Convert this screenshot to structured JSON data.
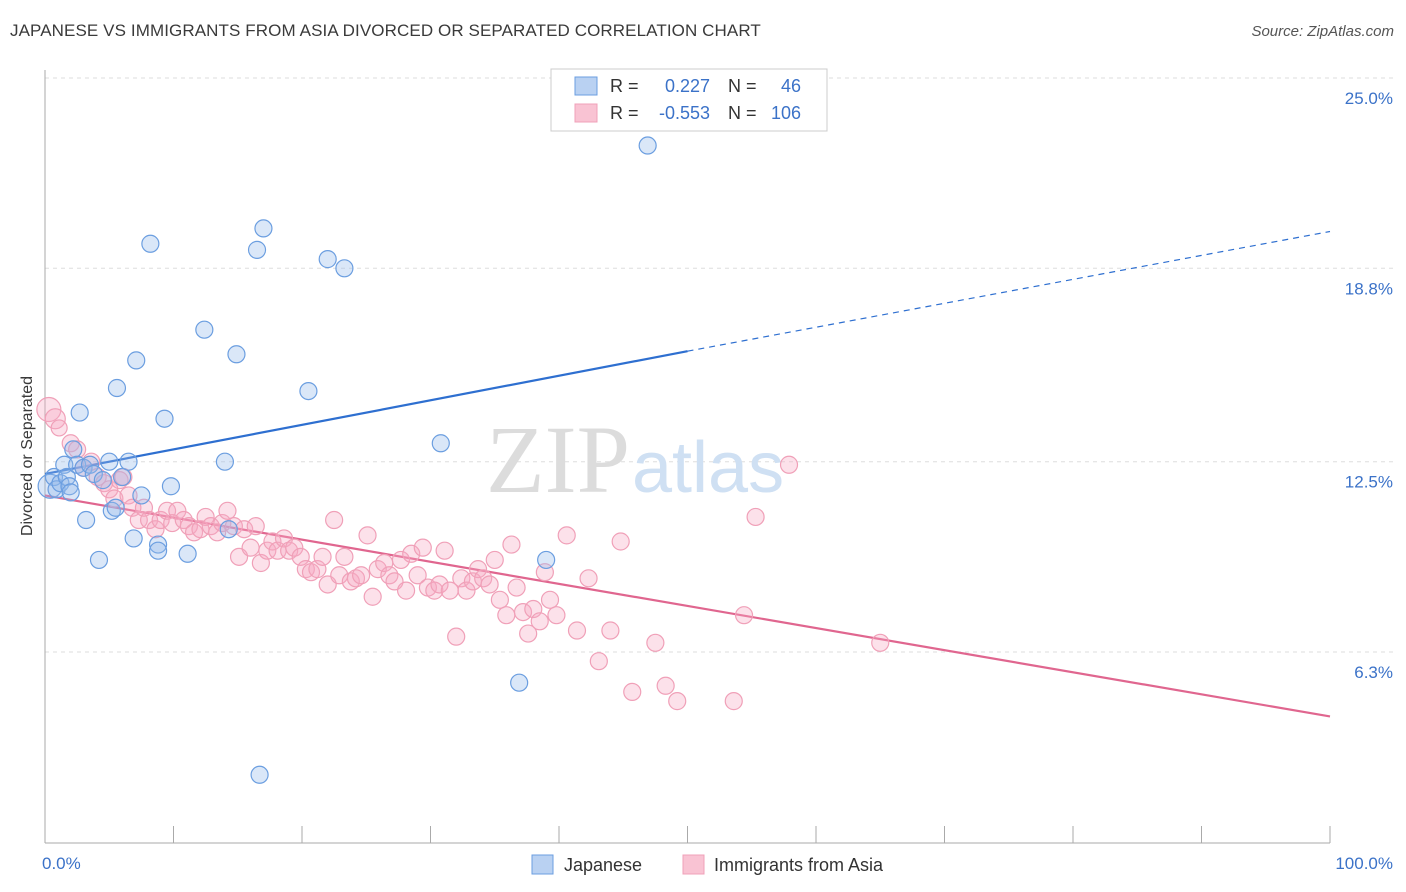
{
  "header": {
    "title": "JAPANESE VS IMMIGRANTS FROM ASIA DIVORCED OR SEPARATED CORRELATION CHART",
    "source": "Source: ZipAtlas.com"
  },
  "watermark": {
    "zip": "ZIP",
    "atlas": "atlas"
  },
  "stats": [
    {
      "r_label": "R =",
      "r_value": "0.227",
      "n_label": "N =",
      "n_value": "46"
    },
    {
      "r_label": "R =",
      "r_value": "-0.553",
      "n_label": "N =",
      "n_value": "106"
    }
  ],
  "chart_data": {
    "type": "scatter",
    "title": "JAPANESE VS IMMIGRANTS FROM ASIA DIVORCED OR SEPARATED CORRELATION CHART",
    "xlabel": "",
    "ylabel": "Divorced or Separated",
    "xlim": [
      0,
      100
    ],
    "ylim": [
      0,
      27
    ],
    "x_tick_labels": [
      "0.0%",
      "100.0%"
    ],
    "y_ticks": [
      6.3,
      12.5,
      18.8,
      25.0
    ],
    "y_tick_labels": [
      "6.3%",
      "12.5%",
      "18.8%",
      "25.0%"
    ],
    "grid": true,
    "legend_position": "bottom",
    "colors": {
      "japanese": "#6b9ee0",
      "asia": "#f0a0b8",
      "japanese_line": "#2e6fd0",
      "asia_line": "#e0668f",
      "tick_label": "#3b72c8"
    },
    "series": [
      {
        "name": "Japanese",
        "r": 0.227,
        "n": 46,
        "trend": {
          "x0": 0,
          "y0": 12.1,
          "x1": 50,
          "y1": 16.1,
          "dash_x1": 100,
          "dash_y1": 20.0
        },
        "points": [
          [
            0.4,
            11.7
          ],
          [
            0.7,
            12.0
          ],
          [
            0.9,
            11.6
          ],
          [
            1.2,
            11.8
          ],
          [
            1.5,
            12.4
          ],
          [
            1.7,
            12.0
          ],
          [
            1.9,
            11.7
          ],
          [
            2.2,
            12.9
          ],
          [
            2.5,
            12.4
          ],
          [
            2.7,
            14.1
          ],
          [
            3.0,
            12.3
          ],
          [
            3.2,
            10.6
          ],
          [
            3.5,
            12.4
          ],
          [
            3.8,
            12.1
          ],
          [
            4.2,
            9.3
          ],
          [
            4.5,
            11.9
          ],
          [
            5.0,
            12.5
          ],
          [
            5.2,
            10.9
          ],
          [
            5.5,
            11.0
          ],
          [
            5.6,
            14.9
          ],
          [
            6.0,
            12.0
          ],
          [
            6.5,
            12.5
          ],
          [
            6.9,
            10.0
          ],
          [
            7.1,
            15.8
          ],
          [
            7.5,
            11.4
          ],
          [
            8.2,
            19.6
          ],
          [
            8.8,
            9.8
          ],
          [
            8.8,
            9.6
          ],
          [
            9.3,
            13.9
          ],
          [
            9.8,
            11.7
          ],
          [
            11.1,
            9.5
          ],
          [
            12.4,
            16.8
          ],
          [
            14.0,
            12.5
          ],
          [
            14.3,
            10.3
          ],
          [
            14.9,
            16.0
          ],
          [
            16.5,
            19.4
          ],
          [
            16.7,
            2.3
          ],
          [
            17.0,
            20.1
          ],
          [
            20.5,
            14.8
          ],
          [
            22.0,
            19.1
          ],
          [
            23.3,
            18.8
          ],
          [
            30.8,
            13.1
          ],
          [
            36.9,
            5.3
          ],
          [
            39.0,
            9.3
          ],
          [
            46.9,
            22.8
          ],
          [
            2.0,
            11.5
          ]
        ]
      },
      {
        "name": "Immigrants from Asia",
        "r": -0.553,
        "n": 106,
        "trend": {
          "x0": 0,
          "y0": 11.4,
          "x1": 100,
          "y1": 4.2
        },
        "points": [
          [
            0.3,
            14.2
          ],
          [
            0.8,
            13.9
          ],
          [
            1.1,
            13.6
          ],
          [
            2.0,
            13.1
          ],
          [
            2.5,
            12.9
          ],
          [
            3.0,
            12.3
          ],
          [
            3.6,
            12.5
          ],
          [
            4.1,
            12.0
          ],
          [
            4.6,
            11.8
          ],
          [
            5.0,
            11.6
          ],
          [
            5.4,
            11.3
          ],
          [
            5.8,
            11.9
          ],
          [
            6.1,
            12.0
          ],
          [
            6.5,
            11.4
          ],
          [
            6.8,
            11.0
          ],
          [
            7.3,
            10.6
          ],
          [
            7.7,
            11.0
          ],
          [
            8.1,
            10.6
          ],
          [
            8.6,
            10.3
          ],
          [
            9.0,
            10.6
          ],
          [
            9.5,
            10.9
          ],
          [
            9.9,
            10.5
          ],
          [
            10.3,
            10.9
          ],
          [
            10.8,
            10.6
          ],
          [
            11.2,
            10.4
          ],
          [
            11.6,
            10.2
          ],
          [
            12.1,
            10.3
          ],
          [
            12.5,
            10.7
          ],
          [
            12.9,
            10.4
          ],
          [
            13.4,
            10.2
          ],
          [
            13.8,
            10.5
          ],
          [
            14.2,
            10.9
          ],
          [
            14.7,
            10.4
          ],
          [
            15.1,
            9.4
          ],
          [
            15.5,
            10.3
          ],
          [
            16.0,
            9.7
          ],
          [
            16.4,
            10.4
          ],
          [
            16.8,
            9.2
          ],
          [
            17.3,
            9.6
          ],
          [
            17.7,
            9.9
          ],
          [
            18.1,
            9.6
          ],
          [
            18.6,
            10.0
          ],
          [
            19.0,
            9.6
          ],
          [
            19.4,
            9.7
          ],
          [
            19.9,
            9.4
          ],
          [
            20.3,
            9.0
          ],
          [
            20.7,
            8.9
          ],
          [
            21.2,
            9.0
          ],
          [
            21.6,
            9.4
          ],
          [
            22.0,
            8.5
          ],
          [
            22.5,
            10.6
          ],
          [
            22.9,
            8.8
          ],
          [
            23.3,
            9.4
          ],
          [
            23.8,
            8.6
          ],
          [
            24.2,
            8.7
          ],
          [
            24.6,
            8.8
          ],
          [
            25.1,
            10.1
          ],
          [
            25.5,
            8.1
          ],
          [
            25.9,
            9.0
          ],
          [
            26.4,
            9.2
          ],
          [
            26.8,
            8.8
          ],
          [
            27.2,
            8.6
          ],
          [
            27.7,
            9.3
          ],
          [
            28.1,
            8.3
          ],
          [
            28.5,
            9.5
          ],
          [
            29.0,
            8.8
          ],
          [
            29.4,
            9.7
          ],
          [
            29.8,
            8.4
          ],
          [
            30.3,
            8.3
          ],
          [
            30.7,
            8.5
          ],
          [
            31.1,
            9.6
          ],
          [
            31.5,
            8.3
          ],
          [
            32.0,
            6.8
          ],
          [
            32.4,
            8.7
          ],
          [
            32.8,
            8.3
          ],
          [
            33.3,
            8.6
          ],
          [
            33.7,
            9.0
          ],
          [
            34.1,
            8.7
          ],
          [
            34.6,
            8.5
          ],
          [
            35.0,
            9.3
          ],
          [
            35.4,
            8.0
          ],
          [
            35.9,
            7.5
          ],
          [
            36.3,
            9.8
          ],
          [
            36.7,
            8.4
          ],
          [
            37.2,
            7.6
          ],
          [
            37.6,
            6.9
          ],
          [
            38.0,
            7.7
          ],
          [
            38.5,
            7.3
          ],
          [
            38.9,
            8.9
          ],
          [
            39.3,
            8.0
          ],
          [
            39.8,
            7.5
          ],
          [
            40.6,
            10.1
          ],
          [
            41.4,
            7.0
          ],
          [
            42.3,
            8.7
          ],
          [
            43.1,
            6.0
          ],
          [
            44.0,
            7.0
          ],
          [
            44.8,
            9.9
          ],
          [
            45.7,
            5.0
          ],
          [
            47.5,
            6.6
          ],
          [
            48.3,
            5.2
          ],
          [
            49.2,
            4.7
          ],
          [
            53.6,
            4.7
          ],
          [
            54.4,
            7.5
          ],
          [
            55.3,
            10.7
          ],
          [
            57.9,
            12.4
          ],
          [
            65.0,
            6.6
          ]
        ]
      }
    ]
  },
  "legend": {
    "items": [
      {
        "label": "Japanese"
      },
      {
        "label": "Immigrants from Asia"
      }
    ]
  }
}
